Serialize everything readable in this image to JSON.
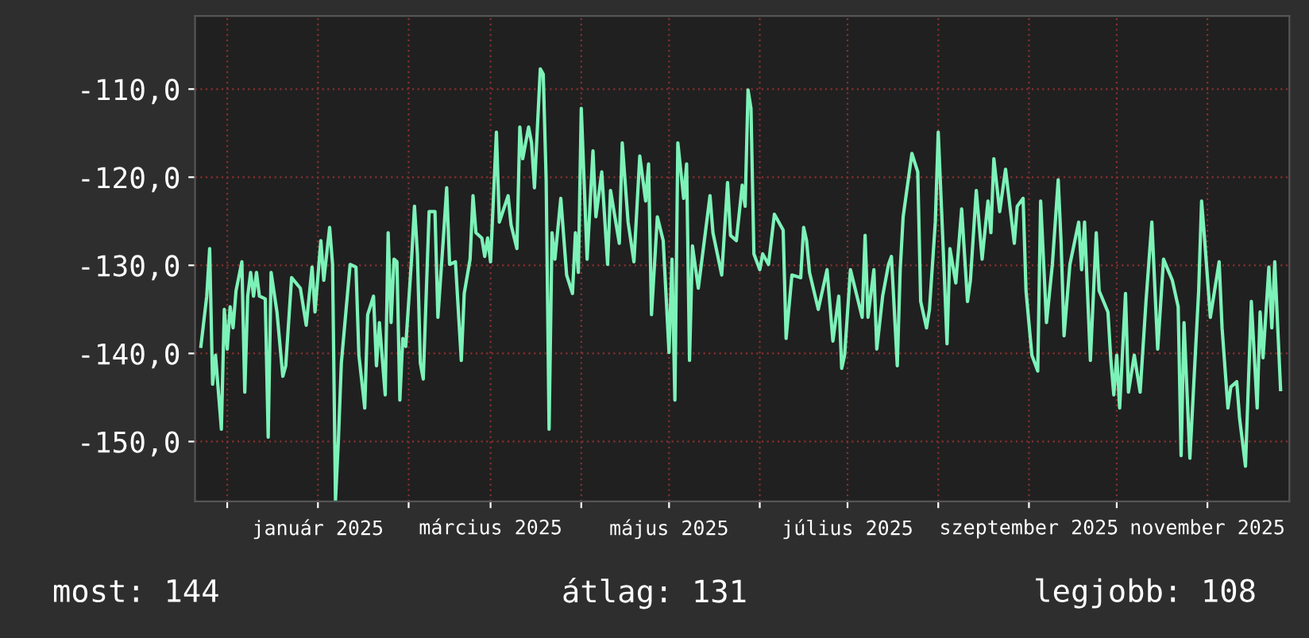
{
  "chart_data": {
    "type": "line",
    "x": [
      "2024-11-22",
      "2024-11-24",
      "2024-11-25",
      "2024-11-26",
      "2024-11-27",
      "2024-11-29",
      "2024-11-30",
      "2024-12-01",
      "2024-12-02",
      "2024-12-03",
      "2024-12-04",
      "2024-12-06",
      "2024-12-07",
      "2024-12-08",
      "2024-12-09",
      "2024-12-10",
      "2024-12-11",
      "2024-12-12",
      "2024-12-14",
      "2024-12-15",
      "2024-12-16",
      "2024-12-18",
      "2024-12-20",
      "2024-12-21",
      "2024-12-23",
      "2024-12-26",
      "2024-12-28",
      "2024-12-30",
      "2024-12-31",
      "2025-01-02",
      "2025-01-03",
      "2025-01-05",
      "2025-01-06",
      "2025-01-07",
      "2025-01-08",
      "2025-01-09",
      "2025-01-12",
      "2025-01-14",
      "2025-01-15",
      "2025-01-17",
      "2025-01-18",
      "2025-01-20",
      "2025-01-21",
      "2025-01-22",
      "2025-01-24",
      "2025-01-25",
      "2025-01-26",
      "2025-01-27",
      "2025-01-28",
      "2025-01-29",
      "2025-01-30",
      "2025-01-31",
      "2025-02-02",
      "2025-02-03",
      "2025-02-04",
      "2025-02-05",
      "2025-02-06",
      "2025-02-08",
      "2025-02-10",
      "2025-02-11",
      "2025-02-13",
      "2025-02-14",
      "2025-02-15",
      "2025-02-17",
      "2025-02-19",
      "2025-02-20",
      "2025-02-22",
      "2025-02-23",
      "2025-02-24",
      "2025-02-26",
      "2025-02-27",
      "2025-02-28",
      "2025-03-01",
      "2025-03-03",
      "2025-03-04",
      "2025-03-07",
      "2025-03-08",
      "2025-03-10",
      "2025-03-11",
      "2025-03-12",
      "2025-03-14",
      "2025-03-15",
      "2025-03-16",
      "2025-03-18",
      "2025-03-19",
      "2025-03-20",
      "2025-03-21",
      "2025-03-22",
      "2025-03-23",
      "2025-03-25",
      "2025-03-27",
      "2025-03-29",
      "2025-03-30",
      "2025-03-31",
      "2025-04-01",
      "2025-04-03",
      "2025-04-05",
      "2025-04-06",
      "2025-04-08",
      "2025-04-10",
      "2025-04-11",
      "2025-04-14",
      "2025-04-15",
      "2025-04-17",
      "2025-04-19",
      "2025-04-21",
      "2025-04-23",
      "2025-04-24",
      "2025-04-25",
      "2025-04-27",
      "2025-04-29",
      "2025-05-01",
      "2025-05-02",
      "2025-05-03",
      "2025-05-04",
      "2025-05-06",
      "2025-05-07",
      "2025-05-08",
      "2025-05-09",
      "2025-05-11",
      "2025-05-15",
      "2025-05-16",
      "2025-05-19",
      "2025-05-21",
      "2025-05-22",
      "2025-05-24",
      "2025-05-26",
      "2025-05-27",
      "2025-05-28",
      "2025-05-29",
      "2025-05-30",
      "2025-06-01",
      "2025-06-02",
      "2025-06-04",
      "2025-06-06",
      "2025-06-09",
      "2025-06-10",
      "2025-06-12",
      "2025-06-15",
      "2025-06-16",
      "2025-06-17",
      "2025-06-18",
      "2025-06-21",
      "2025-06-24",
      "2025-06-26",
      "2025-06-28",
      "2025-06-29",
      "2025-06-30",
      "2025-07-02",
      "2025-07-06",
      "2025-07-07",
      "2025-07-08",
      "2025-07-10",
      "2025-07-11",
      "2025-07-13",
      "2025-07-15",
      "2025-07-16",
      "2025-07-18",
      "2025-07-19",
      "2025-07-20",
      "2025-07-23",
      "2025-07-25",
      "2025-07-26",
      "2025-07-28",
      "2025-07-29",
      "2025-07-31",
      "2025-08-01",
      "2025-08-03",
      "2025-08-04",
      "2025-08-05",
      "2025-08-07",
      "2025-08-09",
      "2025-08-11",
      "2025-08-12",
      "2025-08-14",
      "2025-08-16",
      "2025-08-18",
      "2025-08-19",
      "2025-08-20",
      "2025-08-22",
      "2025-08-23",
      "2025-08-24",
      "2025-08-27",
      "2025-08-28",
      "2025-08-30",
      "2025-08-31",
      "2025-09-02",
      "2025-09-04",
      "2025-09-05",
      "2025-09-07",
      "2025-09-09",
      "2025-09-11",
      "2025-09-12",
      "2025-09-13",
      "2025-09-15",
      "2025-09-18",
      "2025-09-19",
      "2025-09-20",
      "2025-09-22",
      "2025-09-24",
      "2025-09-25",
      "2025-09-28",
      "2025-09-29",
      "2025-09-30",
      "2025-10-01",
      "2025-10-02",
      "2025-10-04",
      "2025-10-05",
      "2025-10-07",
      "2025-10-09",
      "2025-10-11",
      "2025-10-13",
      "2025-10-15",
      "2025-10-17",
      "2025-10-20",
      "2025-10-22",
      "2025-10-23",
      "2025-10-24",
      "2025-10-26",
      "2025-10-29",
      "2025-10-30",
      "2025-10-31",
      "2025-11-02",
      "2025-11-05",
      "2025-11-06",
      "2025-11-08",
      "2025-11-09",
      "2025-11-11",
      "2025-11-12",
      "2025-11-14",
      "2025-11-16",
      "2025-11-18",
      "2025-11-19",
      "2025-11-20",
      "2025-11-22",
      "2025-11-23",
      "2025-11-24",
      "2025-11-26"
    ],
    "series": [
      {
        "color": "#7df2b8",
        "values": [
          -139.2,
          -133.5,
          -128.1,
          -143.5,
          -140.2,
          -148.6,
          -135.0,
          -139.5,
          -134.7,
          -137.1,
          -132.9,
          -129.6,
          -144.4,
          -133.5,
          -130.8,
          -133.5,
          -130.8,
          -133.5,
          -133.8,
          -149.5,
          -130.8,
          -135.3,
          -142.6,
          -141.4,
          -131.4,
          -132.6,
          -136.8,
          -130.2,
          -135.3,
          -127.2,
          -131.7,
          -125.7,
          -129.9,
          -156.7,
          -149.8,
          -141.1,
          -129.9,
          -130.2,
          -140.2,
          -146.2,
          -135.6,
          -133.5,
          -141.4,
          -136.5,
          -144.7,
          -126.3,
          -136.5,
          -129.3,
          -129.6,
          -145.3,
          -138.3,
          -139.2,
          -129.3,
          -123.3,
          -128.7,
          -141.1,
          -142.9,
          -123.9,
          -123.9,
          -135.9,
          -126.3,
          -121.2,
          -129.9,
          -129.6,
          -140.8,
          -133.2,
          -129.3,
          -122.1,
          -126.3,
          -126.9,
          -129.0,
          -126.9,
          -129.6,
          -114.9,
          -125.1,
          -122.1,
          -125.4,
          -128.1,
          -114.3,
          -117.9,
          -114.3,
          -116.1,
          -121.2,
          -107.7,
          -108.3,
          -120.3,
          -148.6,
          -126.3,
          -129.3,
          -122.4,
          -131.1,
          -133.2,
          -126.3,
          -130.8,
          -112.2,
          -129.3,
          -117.0,
          -124.5,
          -119.4,
          -129.9,
          -121.5,
          -127.5,
          -116.1,
          -125.1,
          -129.6,
          -117.6,
          -122.7,
          -118.5,
          -135.6,
          -124.5,
          -127.2,
          -139.9,
          -129.3,
          -145.3,
          -116.1,
          -122.4,
          -118.5,
          -140.8,
          -127.8,
          -132.6,
          -122.1,
          -126.3,
          -131.1,
          -120.6,
          -126.6,
          -127.2,
          -120.9,
          -123.3,
          -110.1,
          -112.2,
          -128.7,
          -130.5,
          -128.7,
          -129.9,
          -124.2,
          -126.0,
          -138.3,
          -131.1,
          -131.4,
          -125.7,
          -127.2,
          -130.8,
          -135.0,
          -130.5,
          -138.6,
          -133.5,
          -141.7,
          -140.2,
          -130.5,
          -135.9,
          -126.6,
          -135.9,
          -130.5,
          -139.5,
          -133.5,
          -129.9,
          -129.0,
          -141.4,
          -130.5,
          -124.5,
          -117.3,
          -119.4,
          -134.1,
          -137.1,
          -135.0,
          -125.1,
          -114.9,
          -130.5,
          -138.9,
          -128.1,
          -132.0,
          -123.6,
          -134.1,
          -131.7,
          -121.5,
          -129.3,
          -122.7,
          -126.3,
          -117.9,
          -123.9,
          -121.5,
          -119.1,
          -127.5,
          -123.3,
          -122.4,
          -132.9,
          -140.2,
          -142.0,
          -122.7,
          -136.5,
          -129.9,
          -120.3,
          -127.5,
          -138.0,
          -129.9,
          -125.1,
          -130.5,
          -125.1,
          -140.8,
          -126.3,
          -132.9,
          -135.3,
          -140.8,
          -144.7,
          -140.2,
          -146.2,
          -133.2,
          -144.4,
          -140.2,
          -144.4,
          -134.1,
          -125.1,
          -139.5,
          -129.3,
          -131.7,
          -134.7,
          -151.6,
          -136.5,
          -151.9,
          -132.9,
          -122.7,
          -126.9,
          -135.9,
          -129.6,
          -137.1,
          -146.2,
          -143.8,
          -143.2,
          -147.4,
          -152.8,
          -134.1,
          -146.2,
          -135.3,
          -140.5,
          -130.2,
          -137.1,
          -129.6,
          -144.1
        ]
      }
    ],
    "xlim": [
      "2024-11-20",
      "2025-11-29"
    ],
    "xticks": [
      {
        "value": "2024-12-01",
        "label": null
      },
      {
        "value": "2025-01-01",
        "label": "január 2025"
      },
      {
        "value": "2025-02-01",
        "label": null
      },
      {
        "value": "2025-03-01",
        "label": "március 2025"
      },
      {
        "value": "2025-04-01",
        "label": null
      },
      {
        "value": "2025-05-01",
        "label": "május 2025"
      },
      {
        "value": "2025-06-01",
        "label": null
      },
      {
        "value": "2025-07-01",
        "label": "július 2025"
      },
      {
        "value": "2025-08-01",
        "label": null
      },
      {
        "value": "2025-09-01",
        "label": "szeptember 2025"
      },
      {
        "value": "2025-10-01",
        "label": null
      },
      {
        "value": "2025-11-01",
        "label": "november 2025"
      }
    ],
    "ylim": [
      -156.8,
      -101.7
    ],
    "yticks": [
      {
        "value": -150,
        "label": "-150,0"
      },
      {
        "value": -140,
        "label": "-140,0"
      },
      {
        "value": -130,
        "label": "-130,0"
      },
      {
        "value": -120,
        "label": "-120,0"
      },
      {
        "value": -110,
        "label": "-110,0"
      }
    ],
    "grid": true,
    "line_style": "solid",
    "annotations": [
      "most: 144",
      "átlag: 131",
      "legjobb: 108"
    ]
  }
}
